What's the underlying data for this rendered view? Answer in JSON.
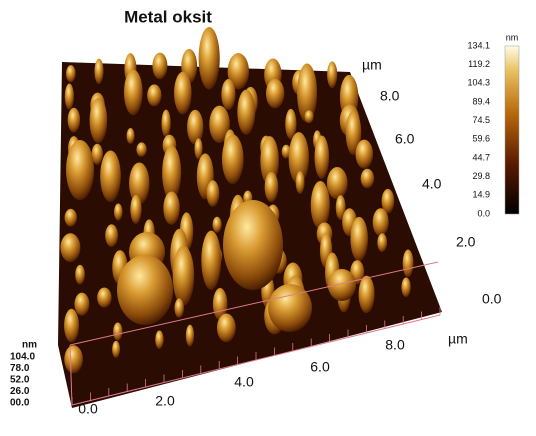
{
  "title": "Metal oksit",
  "colorbar": {
    "unit": "nm",
    "labels": [
      "134.1",
      "119.2",
      "104.3",
      "89.4",
      "74.5",
      "59.6",
      "44.7",
      "29.8",
      "14.9",
      "0.0"
    ]
  },
  "y_axis": {
    "unit": "µm",
    "labels": [
      "8.0",
      "6.0",
      "4.0",
      "2.0",
      "0.0"
    ]
  },
  "x_axis": {
    "unit": "µm",
    "labels": [
      "0.0",
      "2.0",
      "4.0",
      "6.0",
      "8.0"
    ]
  },
  "z_axis": {
    "unit": "nm",
    "labels": [
      "104.0",
      "78.0",
      "52.0",
      "26.0",
      "00.0"
    ]
  }
}
